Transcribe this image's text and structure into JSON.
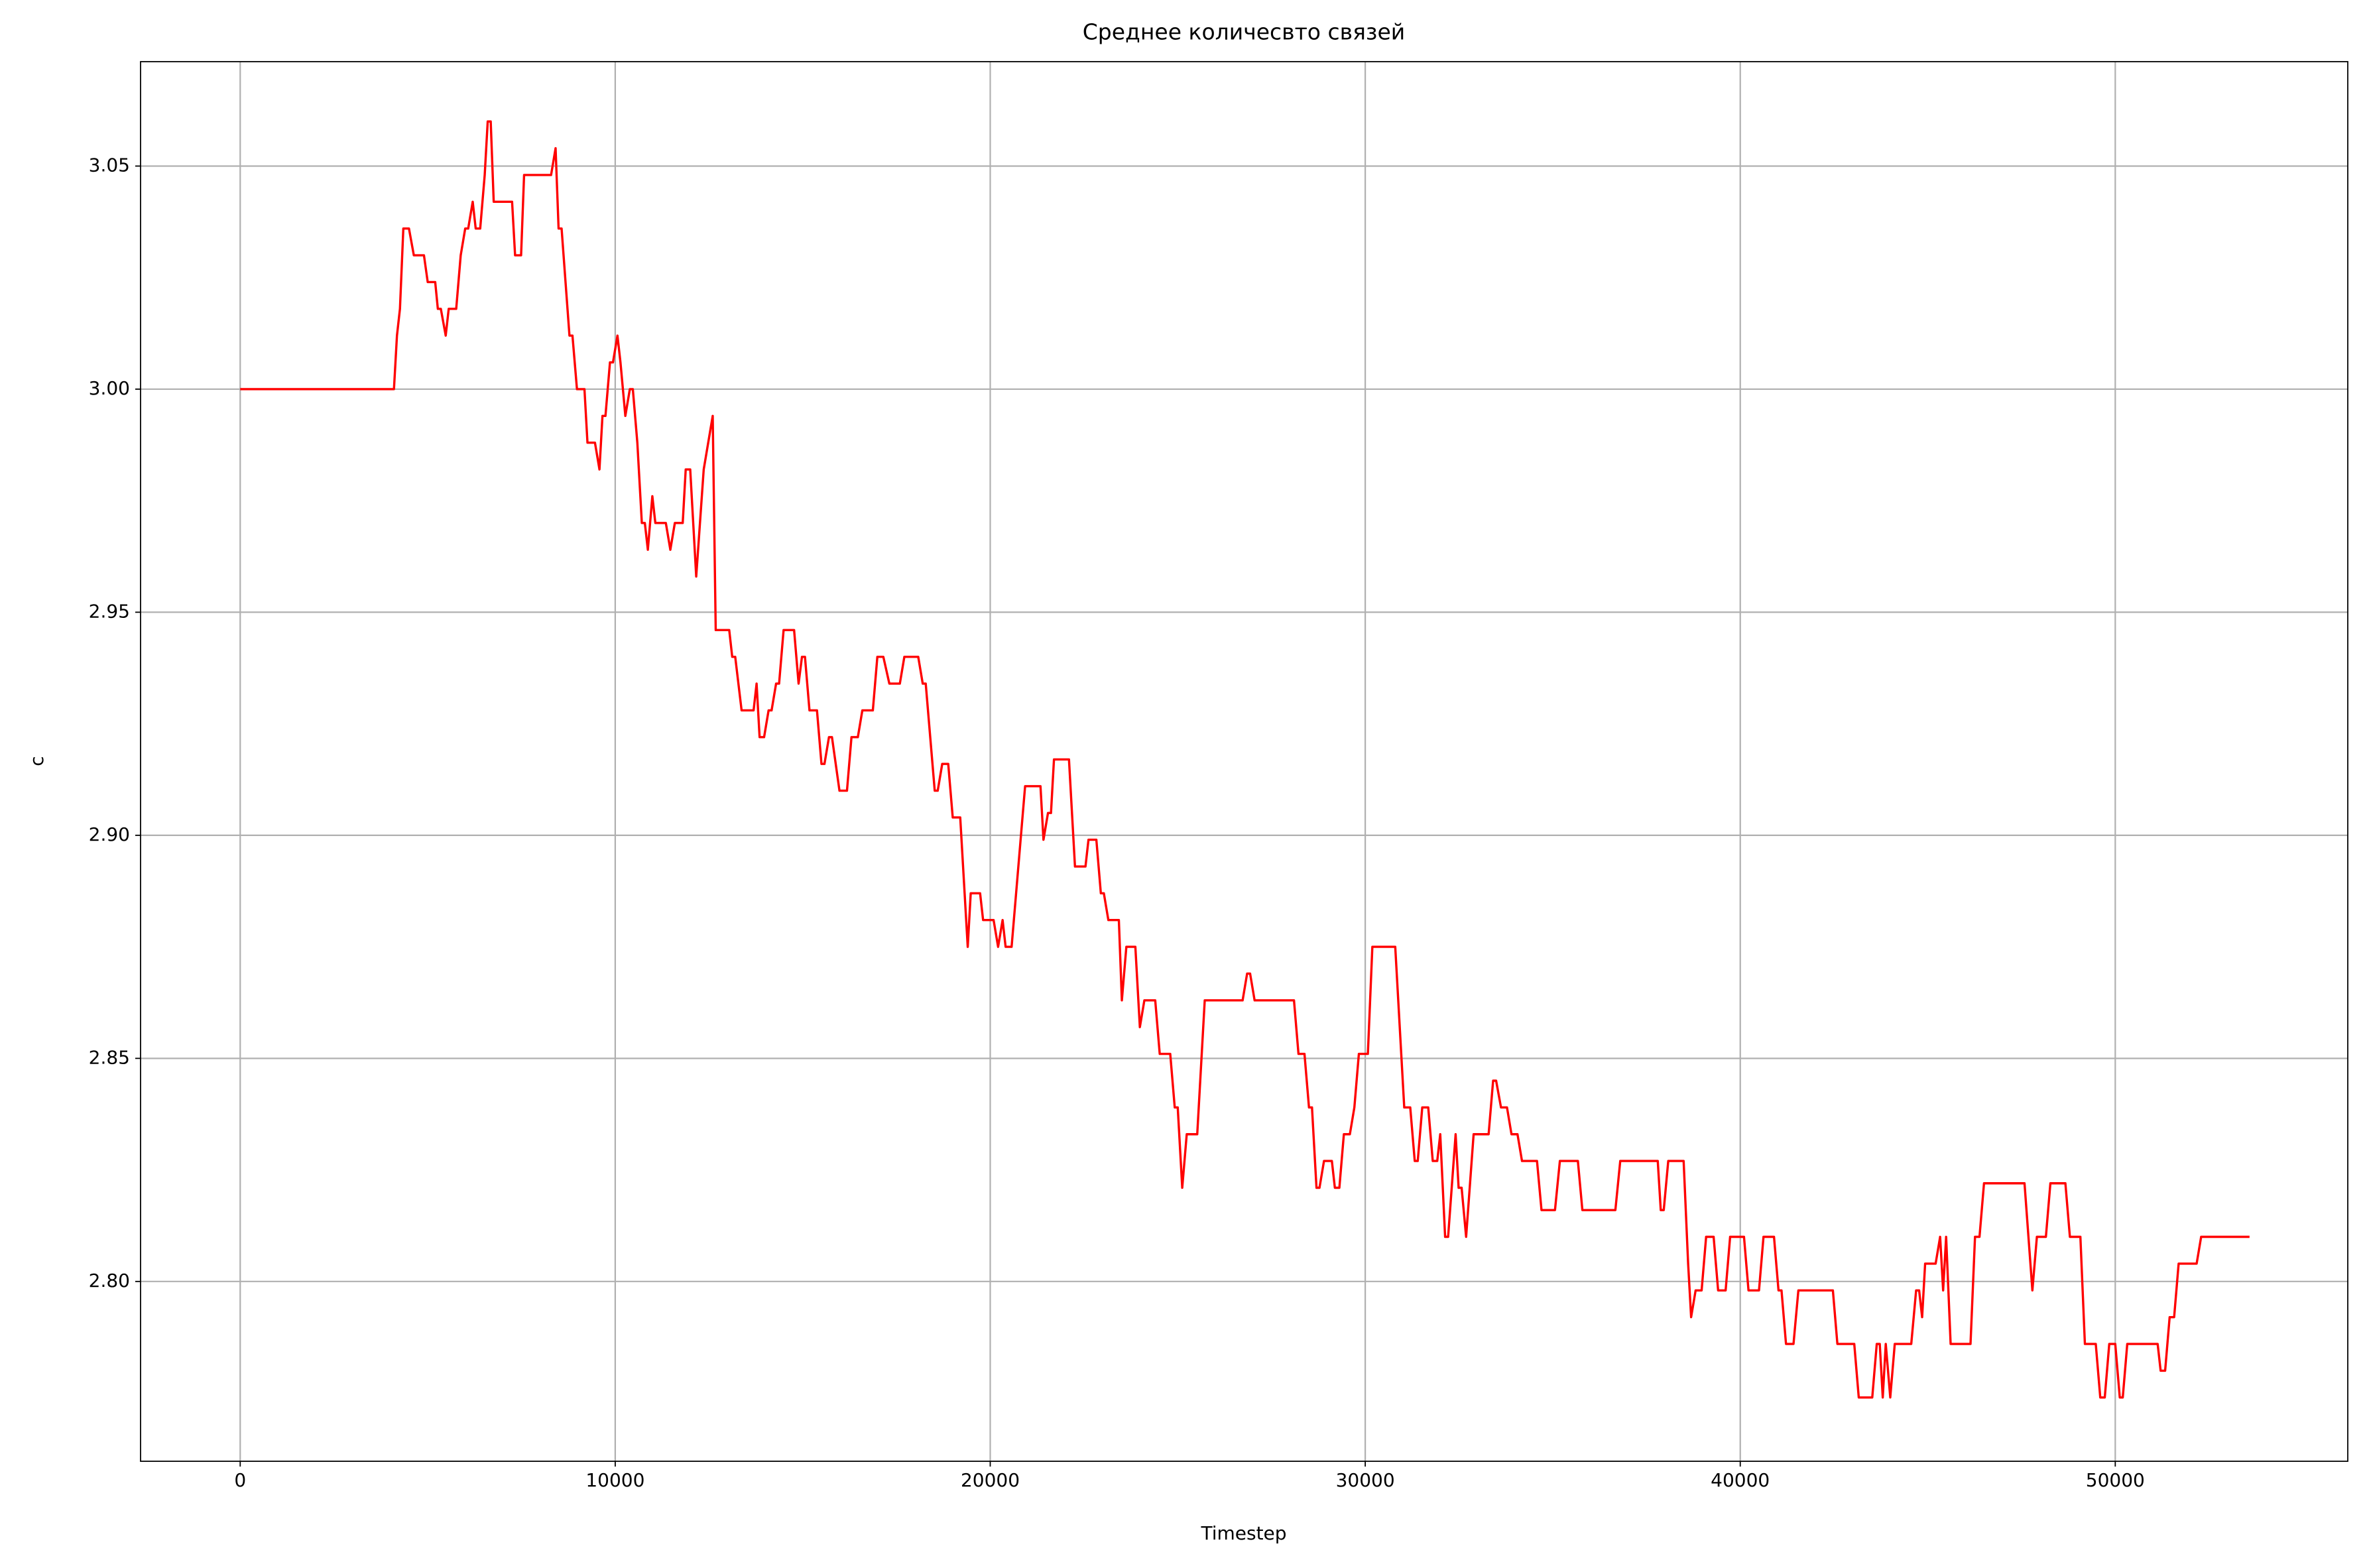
{
  "chart_data": {
    "type": "line",
    "title": "Среднее количесвто связей",
    "xlabel": "Timestep",
    "ylabel": "c",
    "x": [
      0,
      4100,
      4180,
      4260,
      4350,
      4500,
      4630,
      4900,
      5000,
      5200,
      5270,
      5350,
      5480,
      5560,
      5760,
      5880,
      6000,
      6080,
      6200,
      6280,
      6400,
      6520,
      6600,
      6680,
      6760,
      7250,
      7330,
      7490,
      7570,
      8290,
      8410,
      8490,
      8570,
      8780,
      8860,
      8980,
      9180,
      9260,
      9460,
      9580,
      9660,
      9740,
      9860,
      9940,
      10060,
      10140,
      10270,
      10390,
      10470,
      10590,
      10710,
      10790,
      10870,
      10990,
      11070,
      11350,
      11470,
      11590,
      11800,
      11880,
      12000,
      12160,
      12360,
      12600,
      12680,
      13040,
      13120,
      13200,
      13370,
      13690,
      13770,
      13850,
      13970,
      14090,
      14170,
      14290,
      14370,
      14490,
      14770,
      14890,
      14980,
      15060,
      15180,
      15380,
      15500,
      15580,
      15700,
      15780,
      15980,
      16180,
      16300,
      16470,
      16590,
      16870,
      16990,
      17150,
      17310,
      17590,
      17710,
      18080,
      18200,
      18280,
      18520,
      18600,
      18720,
      18880,
      19000,
      19200,
      19400,
      19480,
      19730,
      19810,
      20090,
      20210,
      20330,
      20410,
      20570,
      20690,
      20930,
      21340,
      21420,
      21540,
      21620,
      21700,
      22100,
      22260,
      22540,
      22620,
      22830,
      22950,
      23030,
      23150,
      23430,
      23510,
      23630,
      23870,
      23990,
      24110,
      24400,
      24520,
      24800,
      24920,
      25000,
      25120,
      25240,
      25520,
      25600,
      25720,
      26730,
      26850,
      26930,
      27050,
      28100,
      28220,
      28380,
      28500,
      28580,
      28700,
      28780,
      28900,
      29110,
      29190,
      29310,
      29430,
      29590,
      29710,
      29830,
      30070,
      30190,
      30800,
      31040,
      31200,
      31320,
      31400,
      31520,
      31680,
      31800,
      31920,
      32000,
      32130,
      32210,
      32410,
      32490,
      32570,
      32690,
      32890,
      33290,
      33410,
      33490,
      33620,
      33780,
      33900,
      34060,
      34180,
      34580,
      34700,
      35060,
      35190,
      35670,
      35790,
      36670,
      36800,
      37800,
      37880,
      37960,
      38080,
      38490,
      38610,
      38690,
      38810,
      38970,
      39090,
      39290,
      39410,
      39610,
      39730,
      40100,
      40220,
      40500,
      40620,
      40900,
      41020,
      41100,
      41220,
      41420,
      41550,
      42470,
      42590,
      43040,
      43160,
      43520,
      43640,
      43720,
      43800,
      43880,
      44000,
      44120,
      44560,
      44690,
      44770,
      44850,
      44930,
      45210,
      45330,
      45410,
      45490,
      45610,
      46140,
      46260,
      46380,
      46500,
      47580,
      47790,
      47910,
      48150,
      48270,
      48670,
      48790,
      49070,
      49190,
      49480,
      49600,
      49720,
      49840,
      50000,
      50120,
      50200,
      50320,
      51130,
      51210,
      51330,
      51450,
      51570,
      51690,
      52170,
      52290,
      53580
    ],
    "series": [
      {
        "color": "#ff0000",
        "values": [
          3.0,
          3.0,
          3.012,
          3.018,
          3.036,
          3.036,
          3.03,
          3.03,
          3.024,
          3.024,
          3.018,
          3.018,
          3.012,
          3.018,
          3.018,
          3.03,
          3.036,
          3.036,
          3.042,
          3.036,
          3.036,
          3.048,
          3.06,
          3.06,
          3.042,
          3.042,
          3.03,
          3.03,
          3.048,
          3.048,
          3.054,
          3.036,
          3.036,
          3.012,
          3.012,
          3.0,
          3.0,
          2.988,
          2.988,
          2.982,
          2.994,
          2.994,
          3.006,
          3.006,
          3.012,
          3.006,
          2.994,
          3.0,
          3.0,
          2.988,
          2.97,
          2.97,
          2.964,
          2.976,
          2.97,
          2.97,
          2.964,
          2.97,
          2.97,
          2.982,
          2.982,
          2.958,
          2.982,
          2.994,
          2.946,
          2.946,
          2.94,
          2.94,
          2.928,
          2.928,
          2.934,
          2.922,
          2.922,
          2.928,
          2.928,
          2.934,
          2.934,
          2.946,
          2.946,
          2.934,
          2.94,
          2.94,
          2.928,
          2.928,
          2.916,
          2.916,
          2.922,
          2.922,
          2.91,
          2.91,
          2.922,
          2.922,
          2.928,
          2.928,
          2.94,
          2.94,
          2.934,
          2.934,
          2.94,
          2.94,
          2.934,
          2.934,
          2.91,
          2.91,
          2.916,
          2.916,
          2.904,
          2.904,
          2.875,
          2.887,
          2.887,
          2.881,
          2.881,
          2.875,
          2.881,
          2.875,
          2.875,
          2.887,
          2.911,
          2.911,
          2.899,
          2.905,
          2.905,
          2.917,
          2.917,
          2.893,
          2.893,
          2.899,
          2.899,
          2.887,
          2.887,
          2.881,
          2.881,
          2.863,
          2.875,
          2.875,
          2.857,
          2.863,
          2.863,
          2.851,
          2.851,
          2.839,
          2.839,
          2.821,
          2.833,
          2.833,
          2.845,
          2.863,
          2.863,
          2.869,
          2.869,
          2.863,
          2.863,
          2.851,
          2.851,
          2.839,
          2.839,
          2.821,
          2.821,
          2.827,
          2.827,
          2.821,
          2.821,
          2.833,
          2.833,
          2.839,
          2.851,
          2.851,
          2.875,
          2.875,
          2.839,
          2.839,
          2.827,
          2.827,
          2.839,
          2.839,
          2.827,
          2.827,
          2.833,
          2.81,
          2.81,
          2.833,
          2.821,
          2.821,
          2.81,
          2.833,
          2.833,
          2.845,
          2.845,
          2.839,
          2.839,
          2.833,
          2.833,
          2.827,
          2.827,
          2.816,
          2.816,
          2.827,
          2.827,
          2.816,
          2.816,
          2.827,
          2.827,
          2.816,
          2.816,
          2.827,
          2.827,
          2.804,
          2.792,
          2.798,
          2.798,
          2.81,
          2.81,
          2.798,
          2.798,
          2.81,
          2.81,
          2.798,
          2.798,
          2.81,
          2.81,
          2.798,
          2.798,
          2.786,
          2.786,
          2.798,
          2.798,
          2.786,
          2.786,
          2.774,
          2.774,
          2.786,
          2.786,
          2.774,
          2.786,
          2.774,
          2.786,
          2.786,
          2.798,
          2.798,
          2.792,
          2.804,
          2.804,
          2.81,
          2.798,
          2.81,
          2.786,
          2.786,
          2.81,
          2.81,
          2.822,
          2.822,
          2.798,
          2.81,
          2.81,
          2.822,
          2.822,
          2.81,
          2.81,
          2.786,
          2.786,
          2.774,
          2.774,
          2.786,
          2.786,
          2.774,
          2.774,
          2.786,
          2.786,
          2.78,
          2.78,
          2.792,
          2.792,
          2.804,
          2.804,
          2.81,
          2.81
        ]
      }
    ],
    "xlim": [
      -2657,
      56200
    ],
    "ylim": [
      2.7597,
      3.0734
    ],
    "xticks": [
      0,
      10000,
      20000,
      30000,
      40000,
      50000
    ],
    "yticks": [
      {
        "value": 2.8,
        "label": "2.80"
      },
      2.85,
      {
        "value": 2.9,
        "label": "2.90"
      },
      2.95,
      {
        "value": 3,
        "label": "3.00"
      },
      3.05
    ],
    "grid": true
  }
}
